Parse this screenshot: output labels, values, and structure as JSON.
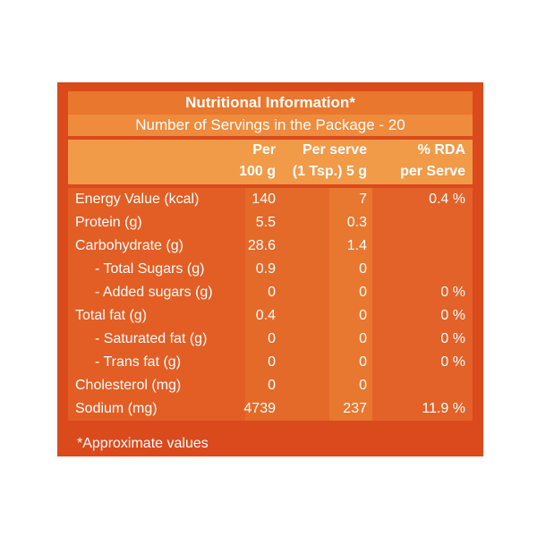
{
  "title": "Nutritional Information*",
  "servings": "Number of Servings in the Package - 20",
  "headers": {
    "per100": [
      "Per",
      "100 g"
    ],
    "perServe": [
      "Per serve",
      "(1 Tsp.) 5 g"
    ],
    "rda": [
      "% RDA",
      "per Serve"
    ]
  },
  "rows": [
    {
      "label": "Energy Value (kcal)",
      "per100": "140",
      "perServe": "7",
      "rda": "0.4 %"
    },
    {
      "label": "Protein (g)",
      "per100": "5.5",
      "perServe": "0.3",
      "rda": ""
    },
    {
      "label": "Carbohydrate (g)",
      "per100": "28.6",
      "perServe": "1.4",
      "rda": ""
    },
    {
      "label": "- Total Sugars (g)",
      "per100": "0.9",
      "perServe": "0",
      "rda": ""
    },
    {
      "label": "- Added sugars (g)",
      "per100": "0",
      "perServe": "0",
      "rda": "0 %"
    },
    {
      "label": "Total fat (g)",
      "per100": "0.4",
      "perServe": "0",
      "rda": "0 %"
    },
    {
      "label": "- Saturated fat (g)",
      "per100": "0",
      "perServe": "0",
      "rda": "0 %"
    },
    {
      "label": "- Trans fat (g)",
      "per100": "0",
      "perServe": "0",
      "rda": "0 %"
    },
    {
      "label": "Cholesterol (mg)",
      "per100": "0",
      "perServe": "0",
      "rda": ""
    },
    {
      "label": "Sodium (mg)",
      "per100": "4739",
      "perServe": "237",
      "rda": "11.9 %"
    }
  ],
  "footnote": "*Approximate values",
  "colors": {
    "panel": "#da4a1c",
    "title_band": "#e9772e",
    "servings_band": "#ee8b3c",
    "header_band": "#f19a48",
    "label_column": "#e25e24",
    "per100_column": "#e46a2a",
    "perserve_column": "#e8772f",
    "rda_column": "#e2622a",
    "text": "#ffffff"
  }
}
